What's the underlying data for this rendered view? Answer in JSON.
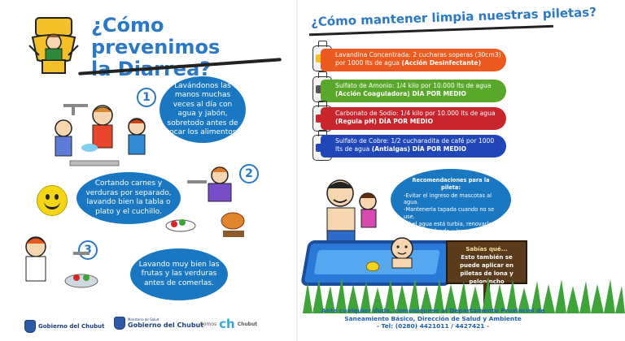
{
  "left": {
    "title_line1": "¿Cómo prevenimos",
    "title_line2": "la Diarrea?",
    "steps": [
      {
        "number": "1",
        "text": "Lavándonos las manos muchas veces al día con agua y jabón, sobretodo antes de tocar los alimentos."
      },
      {
        "number": "2",
        "text": "Cortando carnes y verduras por separado, lavando bien la tabla o plato y el cuchillo."
      },
      {
        "number": "3",
        "text": "Lavando muy bien las frutas y las verduras antes de comerlas."
      }
    ],
    "logos": [
      {
        "text": "Gobierno del Chubut"
      },
      {
        "small": "Ministerio de Salud",
        "text": "Gobierno del Chubut"
      },
      {
        "prefix": "Somos",
        "mark": "ch",
        "text": "Chubut"
      }
    ]
  },
  "right": {
    "title": "¿Cómo mantener limpia nuestras piletas?",
    "items": [
      {
        "text": "Lavandina Concentrada: 2 cucharas soperas (30cm3) por 1000 lts de agua",
        "bold": "(Acción Desinfectante)",
        "color": "#ec5a1f"
      },
      {
        "text": "Sulfato de Amonio: 1/4 kilo por 10.000 lts de agua",
        "bold": "(Acción Coaguladora) DÍA POR MEDIO",
        "color": "#59a82a"
      },
      {
        "text": "Carbonato de Sodio: 1/4 kilo por 10.000 lts de agua",
        "bold": "(Regula pH) DÍA POR MEDIO",
        "color": "#c9252c"
      },
      {
        "text": "Sulfato de Cobre: 1/2 cucharadita de café por 1000 lts de agua",
        "bold": "(Antialgas) DÍA POR MEDIO",
        "color": "#2146b8"
      }
    ],
    "recommendations": {
      "title": "Recomendaciones para la pileta:",
      "lines": [
        "-Evitar el ingreso de mascotas al agua.",
        "-Mantenerla tapada cuando no se use.",
        "-Si el agua está turbia, renovarla.",
        "-Cepillar el fondo y las paredes de la pileta."
      ]
    },
    "sign": {
      "title": "Sabías qué...",
      "text": "Esto también se puede aplicar en piletas de lona y pelopincho"
    },
    "footer": {
      "line1": "Ante cualquier duda, comuníquese al Departamento Provincial de",
      "line2": "Saneamiento Básico, Dirección de Salud y Ambiente",
      "line3": "- Tel: (0280) 4421011 / 4427421 -"
    }
  },
  "colors": {
    "accent": "#2b78c6",
    "bubble": "#1a78c2"
  }
}
